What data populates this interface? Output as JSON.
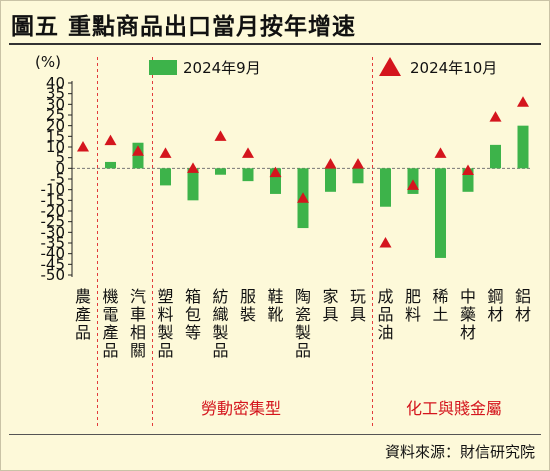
{
  "header": {
    "title": "圖五  重點商品出口當月按年增速"
  },
  "footer": {
    "source": "資料來源：財信研究院"
  },
  "chart_data": {
    "type": "bar",
    "title": "重點商品出口當月按年增速",
    "ylabel": "(%)",
    "ylim": [
      -50,
      40
    ],
    "yticks": [
      40,
      35,
      30,
      25,
      20,
      15,
      10,
      5,
      0,
      -5,
      -10,
      -15,
      -20,
      -25,
      -30,
      -35,
      -40,
      -45,
      -50
    ],
    "categories": [
      "農產品",
      "機電產品",
      "汽車相關",
      "塑料製品",
      "箱包等",
      "紡織製品",
      "服裝",
      "鞋靴",
      "陶瓷製品",
      "家具",
      "玩具",
      "成品油",
      "肥料",
      "稀土",
      "中藥材",
      "鋼材",
      "鋁材"
    ],
    "series": [
      {
        "name": "2024年9月",
        "marker": "bar",
        "color": "#3db34a",
        "values": [
          null,
          3,
          12,
          -8,
          -15,
          -3,
          -6,
          -12,
          -28,
          -11,
          -7,
          -18,
          -12,
          -42,
          -11,
          11,
          20
        ]
      },
      {
        "name": "2024年10月",
        "marker": "triangle",
        "color": "#d4151d",
        "values": [
          10,
          13,
          8,
          7,
          0,
          15,
          7,
          -2,
          -14,
          2,
          2,
          -35,
          -8,
          7,
          -1,
          24,
          31
        ]
      }
    ],
    "groups": [
      {
        "label": "勞動密集型"
      },
      {
        "label": "化工與賤金屬"
      }
    ],
    "legend_position": "top"
  }
}
